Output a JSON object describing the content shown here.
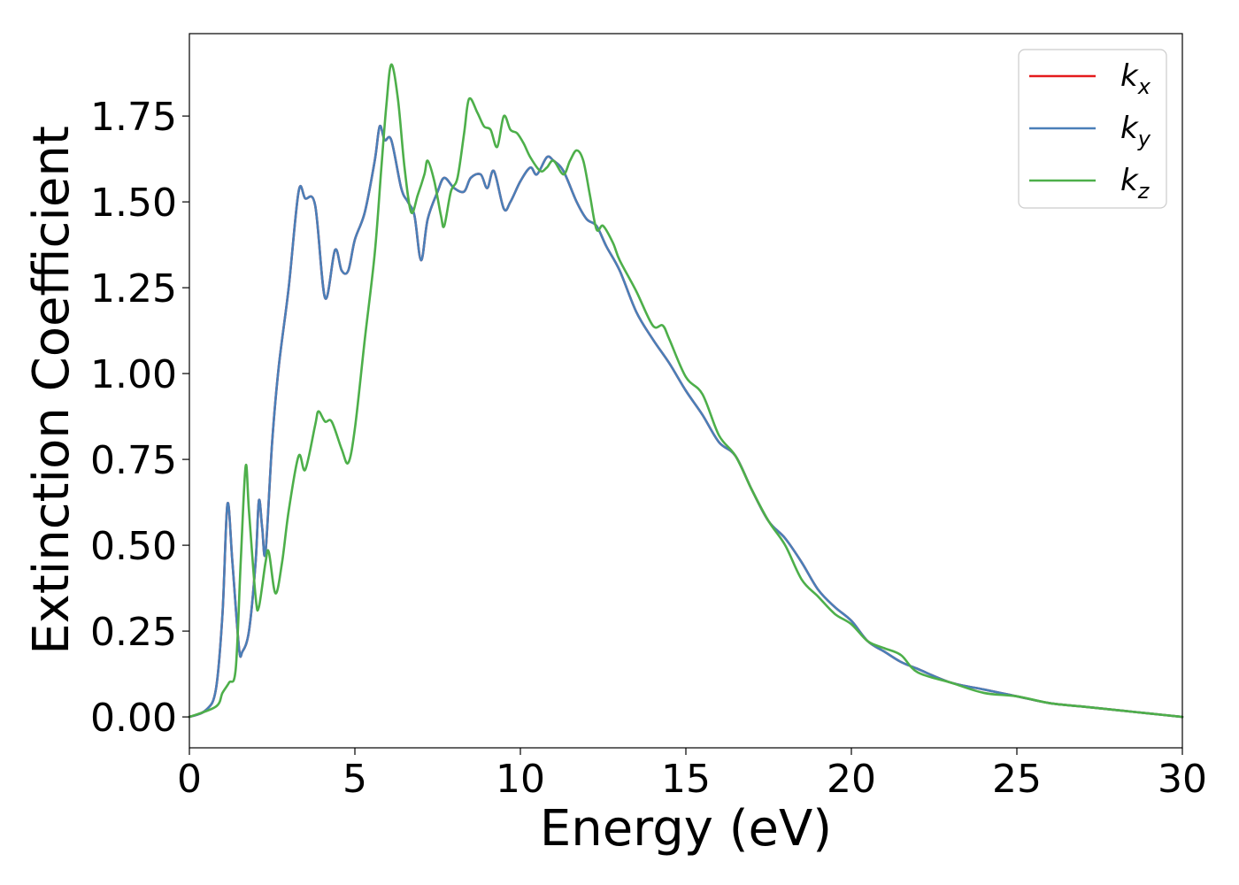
{
  "chart_data": {
    "type": "line",
    "xlabel": "Energy (eV)",
    "ylabel": "Extinction Coefficient",
    "xlim": [
      0,
      30
    ],
    "ylim": [
      -0.09,
      1.99
    ],
    "x_ticks": [
      0,
      5,
      10,
      15,
      20,
      25,
      30
    ],
    "y_ticks": [
      0.0,
      0.25,
      0.5,
      0.75,
      1.0,
      1.25,
      1.5,
      1.75
    ],
    "x_tick_labels": [
      "0",
      "5",
      "10",
      "15",
      "20",
      "25",
      "30"
    ],
    "y_tick_labels": [
      "0.00",
      "0.25",
      "0.50",
      "0.75",
      "1.00",
      "1.25",
      "1.50",
      "1.75"
    ],
    "grid": false,
    "legend_position": "top-right",
    "series": [
      {
        "name": "k_x",
        "color": "#e41a1c",
        "points": [
          [
            0,
            0.0
          ],
          [
            0.5,
            0.02
          ],
          [
            0.8,
            0.08
          ],
          [
            1.0,
            0.3
          ],
          [
            1.15,
            0.62
          ],
          [
            1.3,
            0.45
          ],
          [
            1.5,
            0.2
          ],
          [
            1.6,
            0.19
          ],
          [
            1.8,
            0.25
          ],
          [
            2.0,
            0.45
          ],
          [
            2.1,
            0.63
          ],
          [
            2.2,
            0.55
          ],
          [
            2.3,
            0.48
          ],
          [
            2.5,
            0.8
          ],
          [
            2.7,
            1.02
          ],
          [
            3.0,
            1.25
          ],
          [
            3.3,
            1.53
          ],
          [
            3.5,
            1.51
          ],
          [
            3.8,
            1.49
          ],
          [
            4.1,
            1.22
          ],
          [
            4.4,
            1.36
          ],
          [
            4.6,
            1.3
          ],
          [
            4.8,
            1.3
          ],
          [
            5.0,
            1.39
          ],
          [
            5.3,
            1.47
          ],
          [
            5.6,
            1.62
          ],
          [
            5.75,
            1.72
          ],
          [
            5.9,
            1.68
          ],
          [
            6.1,
            1.68
          ],
          [
            6.4,
            1.54
          ],
          [
            6.6,
            1.5
          ],
          [
            6.8,
            1.46
          ],
          [
            7.0,
            1.33
          ],
          [
            7.2,
            1.45
          ],
          [
            7.5,
            1.53
          ],
          [
            7.7,
            1.57
          ],
          [
            8.0,
            1.54
          ],
          [
            8.3,
            1.53
          ],
          [
            8.5,
            1.57
          ],
          [
            8.8,
            1.58
          ],
          [
            9.0,
            1.54
          ],
          [
            9.2,
            1.59
          ],
          [
            9.5,
            1.48
          ],
          [
            9.7,
            1.5
          ],
          [
            10.0,
            1.56
          ],
          [
            10.3,
            1.6
          ],
          [
            10.5,
            1.58
          ],
          [
            10.8,
            1.63
          ],
          [
            11.0,
            1.62
          ],
          [
            11.3,
            1.59
          ],
          [
            11.7,
            1.5
          ],
          [
            12.0,
            1.45
          ],
          [
            12.3,
            1.43
          ],
          [
            12.6,
            1.37
          ],
          [
            13.0,
            1.3
          ],
          [
            13.5,
            1.18
          ],
          [
            14.0,
            1.1
          ],
          [
            14.5,
            1.03
          ],
          [
            15.0,
            0.95
          ],
          [
            15.5,
            0.88
          ],
          [
            16.0,
            0.8
          ],
          [
            16.5,
            0.76
          ],
          [
            17.0,
            0.66
          ],
          [
            17.5,
            0.57
          ],
          [
            18.0,
            0.52
          ],
          [
            18.5,
            0.45
          ],
          [
            19.0,
            0.37
          ],
          [
            19.5,
            0.32
          ],
          [
            20.0,
            0.28
          ],
          [
            20.5,
            0.22
          ],
          [
            21.0,
            0.19
          ],
          [
            21.5,
            0.16
          ],
          [
            22.0,
            0.14
          ],
          [
            23.0,
            0.1
          ],
          [
            24.0,
            0.08
          ],
          [
            25.0,
            0.06
          ],
          [
            26.0,
            0.04
          ],
          [
            27.0,
            0.03
          ],
          [
            28.0,
            0.02
          ],
          [
            29.0,
            0.01
          ],
          [
            30.0,
            0.0
          ]
        ]
      },
      {
        "name": "k_y",
        "color": "#4a7fb8",
        "points": [
          [
            0,
            0.0
          ],
          [
            0.5,
            0.02
          ],
          [
            0.8,
            0.08
          ],
          [
            1.0,
            0.3
          ],
          [
            1.15,
            0.62
          ],
          [
            1.3,
            0.45
          ],
          [
            1.5,
            0.2
          ],
          [
            1.6,
            0.19
          ],
          [
            1.8,
            0.25
          ],
          [
            2.0,
            0.45
          ],
          [
            2.1,
            0.63
          ],
          [
            2.2,
            0.55
          ],
          [
            2.3,
            0.48
          ],
          [
            2.5,
            0.8
          ],
          [
            2.7,
            1.02
          ],
          [
            3.0,
            1.25
          ],
          [
            3.3,
            1.53
          ],
          [
            3.5,
            1.51
          ],
          [
            3.8,
            1.49
          ],
          [
            4.1,
            1.22
          ],
          [
            4.4,
            1.36
          ],
          [
            4.6,
            1.3
          ],
          [
            4.8,
            1.3
          ],
          [
            5.0,
            1.39
          ],
          [
            5.3,
            1.47
          ],
          [
            5.6,
            1.62
          ],
          [
            5.75,
            1.72
          ],
          [
            5.9,
            1.68
          ],
          [
            6.1,
            1.68
          ],
          [
            6.4,
            1.54
          ],
          [
            6.6,
            1.5
          ],
          [
            6.8,
            1.46
          ],
          [
            7.0,
            1.33
          ],
          [
            7.2,
            1.45
          ],
          [
            7.5,
            1.53
          ],
          [
            7.7,
            1.57
          ],
          [
            8.0,
            1.54
          ],
          [
            8.3,
            1.53
          ],
          [
            8.5,
            1.57
          ],
          [
            8.8,
            1.58
          ],
          [
            9.0,
            1.54
          ],
          [
            9.2,
            1.59
          ],
          [
            9.5,
            1.48
          ],
          [
            9.7,
            1.5
          ],
          [
            10.0,
            1.56
          ],
          [
            10.3,
            1.6
          ],
          [
            10.5,
            1.58
          ],
          [
            10.8,
            1.63
          ],
          [
            11.0,
            1.62
          ],
          [
            11.3,
            1.59
          ],
          [
            11.7,
            1.5
          ],
          [
            12.0,
            1.45
          ],
          [
            12.3,
            1.43
          ],
          [
            12.6,
            1.37
          ],
          [
            13.0,
            1.3
          ],
          [
            13.5,
            1.18
          ],
          [
            14.0,
            1.1
          ],
          [
            14.5,
            1.03
          ],
          [
            15.0,
            0.95
          ],
          [
            15.5,
            0.88
          ],
          [
            16.0,
            0.8
          ],
          [
            16.5,
            0.76
          ],
          [
            17.0,
            0.66
          ],
          [
            17.5,
            0.57
          ],
          [
            18.0,
            0.52
          ],
          [
            18.5,
            0.45
          ],
          [
            19.0,
            0.37
          ],
          [
            19.5,
            0.32
          ],
          [
            20.0,
            0.28
          ],
          [
            20.5,
            0.22
          ],
          [
            21.0,
            0.19
          ],
          [
            21.5,
            0.16
          ],
          [
            22.0,
            0.14
          ],
          [
            23.0,
            0.1
          ],
          [
            24.0,
            0.08
          ],
          [
            25.0,
            0.06
          ],
          [
            26.0,
            0.04
          ],
          [
            27.0,
            0.03
          ],
          [
            28.0,
            0.02
          ],
          [
            29.0,
            0.01
          ],
          [
            30.0,
            0.0
          ]
        ]
      },
      {
        "name": "k_z",
        "color": "#4daf4a",
        "points": [
          [
            0,
            0.0
          ],
          [
            0.8,
            0.03
          ],
          [
            1.0,
            0.07
          ],
          [
            1.2,
            0.1
          ],
          [
            1.4,
            0.14
          ],
          [
            1.55,
            0.45
          ],
          [
            1.7,
            0.73
          ],
          [
            1.8,
            0.6
          ],
          [
            2.0,
            0.35
          ],
          [
            2.1,
            0.32
          ],
          [
            2.3,
            0.45
          ],
          [
            2.4,
            0.48
          ],
          [
            2.6,
            0.36
          ],
          [
            2.8,
            0.45
          ],
          [
            3.0,
            0.6
          ],
          [
            3.3,
            0.76
          ],
          [
            3.5,
            0.72
          ],
          [
            3.8,
            0.85
          ],
          [
            3.9,
            0.89
          ],
          [
            4.1,
            0.86
          ],
          [
            4.3,
            0.86
          ],
          [
            4.6,
            0.78
          ],
          [
            4.8,
            0.74
          ],
          [
            5.0,
            0.84
          ],
          [
            5.3,
            1.1
          ],
          [
            5.6,
            1.35
          ],
          [
            5.8,
            1.6
          ],
          [
            5.95,
            1.78
          ],
          [
            6.1,
            1.9
          ],
          [
            6.3,
            1.8
          ],
          [
            6.5,
            1.6
          ],
          [
            6.7,
            1.47
          ],
          [
            6.9,
            1.52
          ],
          [
            7.1,
            1.58
          ],
          [
            7.2,
            1.62
          ],
          [
            7.4,
            1.56
          ],
          [
            7.6,
            1.46
          ],
          [
            7.7,
            1.43
          ],
          [
            7.9,
            1.53
          ],
          [
            8.1,
            1.57
          ],
          [
            8.3,
            1.7
          ],
          [
            8.45,
            1.8
          ],
          [
            8.7,
            1.76
          ],
          [
            8.9,
            1.72
          ],
          [
            9.1,
            1.71
          ],
          [
            9.3,
            1.66
          ],
          [
            9.5,
            1.75
          ],
          [
            9.7,
            1.71
          ],
          [
            9.9,
            1.7
          ],
          [
            10.1,
            1.67
          ],
          [
            10.3,
            1.63
          ],
          [
            10.6,
            1.59
          ],
          [
            10.8,
            1.6
          ],
          [
            11.0,
            1.62
          ],
          [
            11.3,
            1.58
          ],
          [
            11.5,
            1.62
          ],
          [
            11.7,
            1.65
          ],
          [
            11.9,
            1.62
          ],
          [
            12.1,
            1.52
          ],
          [
            12.3,
            1.42
          ],
          [
            12.5,
            1.43
          ],
          [
            12.8,
            1.38
          ],
          [
            13.0,
            1.33
          ],
          [
            13.5,
            1.24
          ],
          [
            14.0,
            1.14
          ],
          [
            14.3,
            1.14
          ],
          [
            14.5,
            1.1
          ],
          [
            15.0,
            0.99
          ],
          [
            15.5,
            0.94
          ],
          [
            16.0,
            0.82
          ],
          [
            16.5,
            0.76
          ],
          [
            17.0,
            0.66
          ],
          [
            17.5,
            0.57
          ],
          [
            18.0,
            0.5
          ],
          [
            18.5,
            0.4
          ],
          [
            19.0,
            0.35
          ],
          [
            19.5,
            0.3
          ],
          [
            20.0,
            0.27
          ],
          [
            20.5,
            0.22
          ],
          [
            21.0,
            0.2
          ],
          [
            21.5,
            0.18
          ],
          [
            22.0,
            0.13
          ],
          [
            23.0,
            0.1
          ],
          [
            24.0,
            0.07
          ],
          [
            25.0,
            0.06
          ],
          [
            26.0,
            0.04
          ],
          [
            27.0,
            0.03
          ],
          [
            28.0,
            0.02
          ],
          [
            29.0,
            0.01
          ],
          [
            30.0,
            0.0
          ]
        ]
      }
    ]
  },
  "legend": {
    "items": [
      {
        "base": "k",
        "sub": "x"
      },
      {
        "base": "k",
        "sub": "y"
      },
      {
        "base": "k",
        "sub": "z"
      }
    ]
  }
}
